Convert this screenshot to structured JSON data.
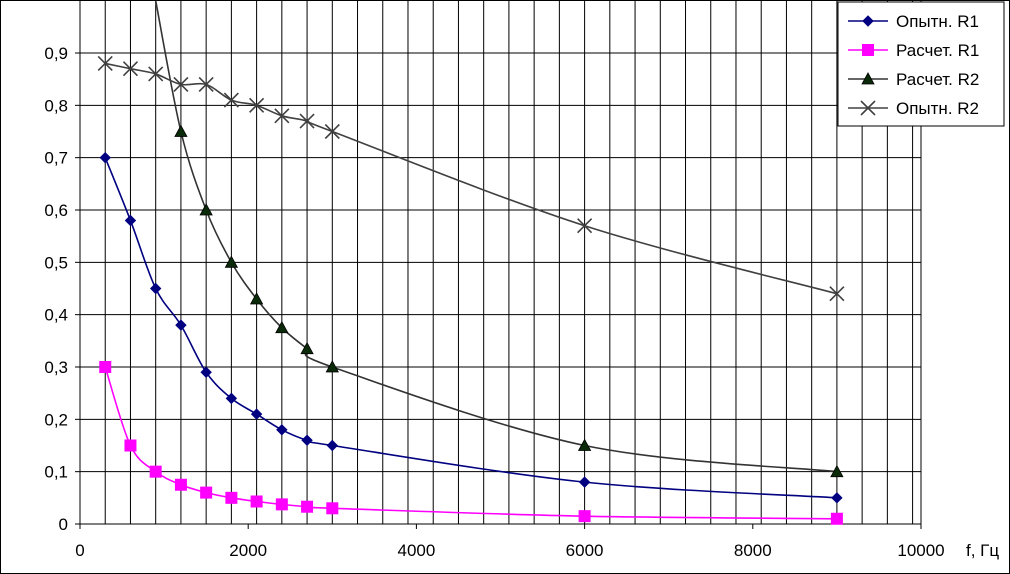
{
  "chart_data": {
    "type": "line",
    "title": "",
    "xlabel": "f, Гц",
    "ylabel": "",
    "xlim": [
      0,
      10000
    ],
    "ylim": [
      0,
      0.9
    ],
    "x_ticks": [
      0,
      2000,
      4000,
      6000,
      8000,
      10000
    ],
    "x_tick_labels": [
      "0",
      "2000",
      "4000",
      "6000",
      "8000",
      "10000"
    ],
    "x_grid_step": 300,
    "y_ticks": [
      0,
      0.1,
      0.2,
      0.3,
      0.4,
      0.5,
      0.6,
      0.7,
      0.8,
      0.9
    ],
    "y_tick_labels": [
      "0",
      "0,1",
      "0,2",
      "0,3",
      "0,4",
      "0,5",
      "0,6",
      "0,7",
      "0,8",
      "0,9"
    ],
    "grid": true,
    "legend_position": "top-right",
    "series": [
      {
        "name": "Опытн. R1",
        "color": "#000080",
        "marker": "diamond",
        "x": [
          300,
          600,
          900,
          1200,
          1500,
          1800,
          2100,
          2400,
          2700,
          3000,
          6000,
          9000
        ],
        "values": [
          0.7,
          0.58,
          0.45,
          0.38,
          0.29,
          0.24,
          0.21,
          0.18,
          0.16,
          0.15,
          0.08,
          0.05
        ]
      },
      {
        "name": "Расчет. R1",
        "color": "#ff00ff",
        "marker": "square",
        "x": [
          300,
          600,
          900,
          1200,
          1500,
          1800,
          2100,
          2400,
          2700,
          3000,
          6000,
          9000
        ],
        "values": [
          0.3,
          0.15,
          0.1,
          0.075,
          0.06,
          0.05,
          0.043,
          0.0375,
          0.033,
          0.03,
          0.015,
          0.01
        ]
      },
      {
        "name": "Расчет. R2",
        "color": "#333333",
        "marker": "triangle",
        "marker_fill": "#0a2a0a",
        "leading_x": 900,
        "leading_y": 1.0,
        "x": [
          1200,
          1500,
          1800,
          2100,
          2400,
          2700,
          3000,
          6000,
          9000
        ],
        "values": [
          0.75,
          0.6,
          0.5,
          0.43,
          0.375,
          0.335,
          0.3,
          0.15,
          0.1
        ]
      },
      {
        "name": "Опытн. R2",
        "color": "#404040",
        "marker": "x",
        "x": [
          300,
          600,
          900,
          1200,
          1500,
          1800,
          2100,
          2400,
          2700,
          3000,
          6000,
          9000
        ],
        "values": [
          0.88,
          0.87,
          0.86,
          0.84,
          0.84,
          0.81,
          0.8,
          0.78,
          0.77,
          0.75,
          0.57,
          0.44
        ]
      }
    ]
  }
}
